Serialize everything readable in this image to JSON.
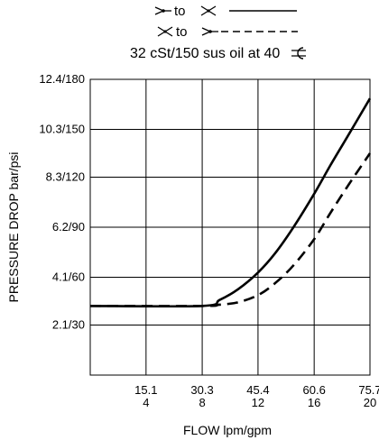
{
  "chart_data": {
    "type": "line",
    "title": "32 cSt/150 sus oil at 40",
    "title_symbol": "celsius-symbol",
    "legend": [
      {
        "name": "1 to 2",
        "from_icon": "port-1-icon",
        "to_icon": "port-2-icon",
        "text": "to",
        "line_style": "solid"
      },
      {
        "name": "2 to 1",
        "from_icon": "port-2-icon",
        "to_icon": "port-1-icon",
        "text": "to",
        "line_style": "dashed"
      }
    ],
    "xlabel": "FLOW lpm/gpm",
    "ylabel": "PRESSURE DROP bar/psi",
    "xlim": [
      0,
      75.7
    ],
    "ylim": [
      0,
      12.4
    ],
    "x_ticks": [
      {
        "value": 15.1,
        "lpm": "15.1",
        "gpm": "4"
      },
      {
        "value": 30.3,
        "lpm": "30.3",
        "gpm": "8"
      },
      {
        "value": 45.4,
        "lpm": "45.4",
        "gpm": "12"
      },
      {
        "value": 60.6,
        "lpm": "60.6",
        "gpm": "16"
      },
      {
        "value": 75.7,
        "lpm": "75.7",
        "gpm": "20"
      }
    ],
    "y_ticks": [
      {
        "value": 2.1,
        "label": "2.1/30"
      },
      {
        "value": 4.1,
        "label": "4.1/60"
      },
      {
        "value": 6.2,
        "label": "6.2/90"
      },
      {
        "value": 8.3,
        "label": "8.3/120"
      },
      {
        "value": 10.3,
        "label": "10.3/150"
      },
      {
        "value": 12.4,
        "label": "12.4/180"
      }
    ],
    "grid": true,
    "series": [
      {
        "name": "1 to 2",
        "style": "solid",
        "x": [
          0,
          30.3,
          35,
          40,
          45.4,
          50,
          55,
          60.6,
          65,
          70,
          75.7
        ],
        "y": [
          2.9,
          2.9,
          3.15,
          3.6,
          4.3,
          5.1,
          6.2,
          7.6,
          8.8,
          10.1,
          11.6
        ]
      },
      {
        "name": "2 to 1",
        "style": "dashed",
        "x": [
          0,
          30.3,
          35,
          40,
          45.4,
          50,
          55,
          60.6,
          65,
          70,
          75.7
        ],
        "y": [
          2.9,
          2.9,
          2.95,
          3.05,
          3.35,
          3.85,
          4.6,
          5.7,
          6.8,
          8.0,
          9.3
        ]
      }
    ]
  }
}
